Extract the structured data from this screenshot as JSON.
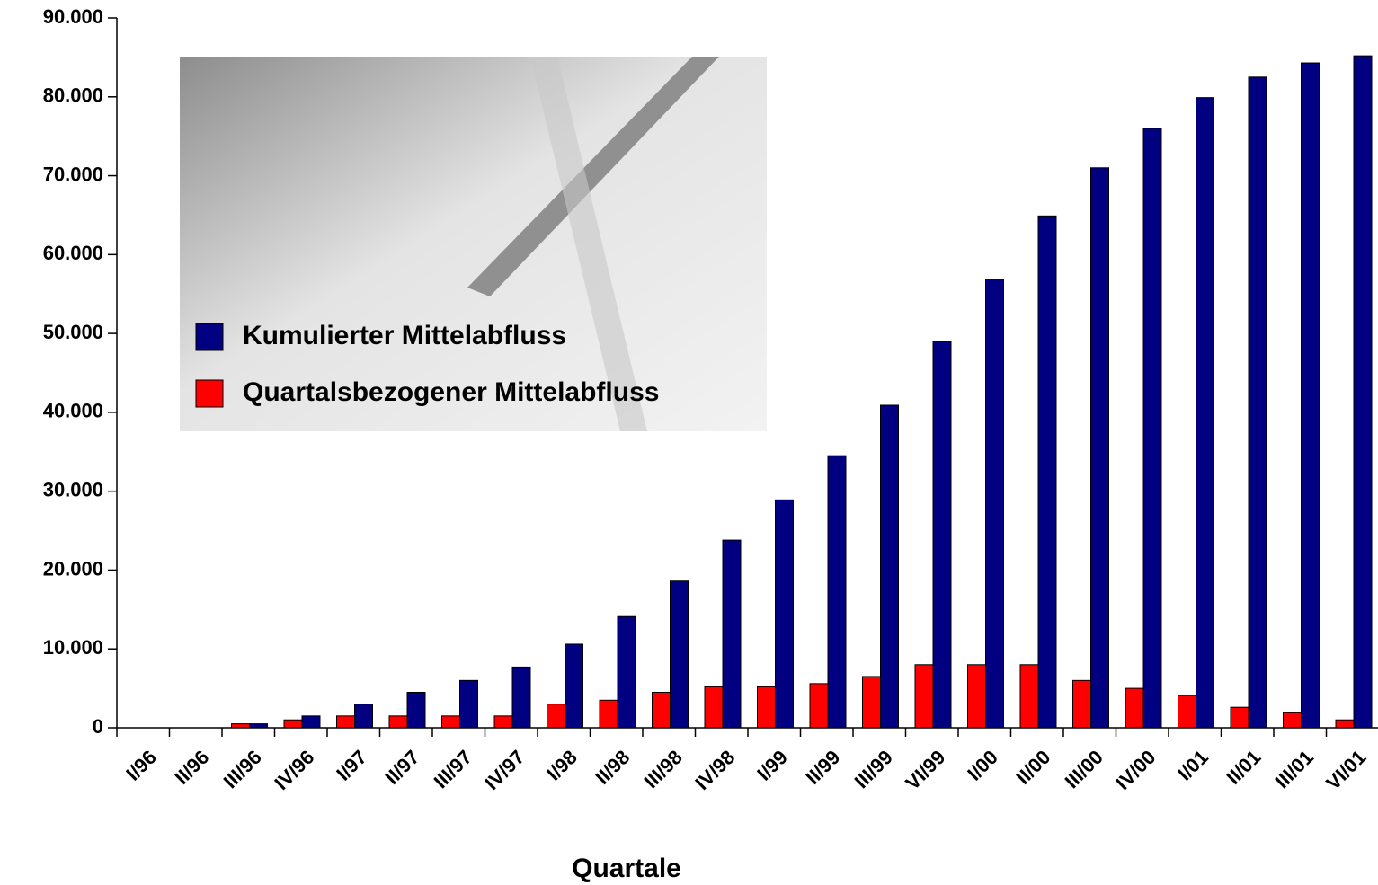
{
  "chart_data": {
    "type": "bar",
    "x_label": "Quartale",
    "categories": [
      "I/96",
      "II/96",
      "III/96",
      "IV/96",
      "I/97",
      "II/97",
      "III/97",
      "IV/97",
      "I/98",
      "II/98",
      "III/98",
      "IV/98",
      "I/99",
      "II/99",
      "III/99",
      "VI/99",
      "I/00",
      "II/00",
      "III/00",
      "IV/00",
      "I/01",
      "II/01",
      "III/01",
      "VI/01"
    ],
    "series": [
      {
        "name": "Quartalsbezogener Mittelabfluss",
        "color": "#ff0000",
        "values": [
          0,
          0,
          500,
          1000,
          1500,
          1500,
          1500,
          1500,
          3000,
          3500,
          4500,
          5200,
          5200,
          5600,
          6500,
          8000,
          8000,
          8000,
          6000,
          5000,
          4100,
          2600,
          1900,
          1000
        ]
      },
      {
        "name": "Kumulierter Mittelabfluss",
        "color": "#000080",
        "values": [
          0,
          0,
          500,
          1500,
          3000,
          4500,
          6000,
          7700,
          10600,
          14100,
          18600,
          23800,
          28900,
          34500,
          40900,
          49000,
          56900,
          64900,
          71000,
          76000,
          79900,
          82500,
          84300,
          85200
        ]
      }
    ],
    "legend_order": [
      1,
      0
    ],
    "ylim": [
      0,
      90000
    ],
    "yticks": [
      0,
      {
        "value": 10000,
        "label": "10.000"
      },
      {
        "value": 20000,
        "label": "20.000"
      },
      {
        "value": 30000,
        "label": "30.000"
      },
      {
        "value": 40000,
        "label": "40.000"
      },
      {
        "value": 50000,
        "label": "50.000"
      },
      {
        "value": 60000,
        "label": "60.000"
      },
      {
        "value": 70000,
        "label": "70.000"
      },
      {
        "value": 80000,
        "label": "80.000"
      },
      {
        "value": 90000,
        "label": "90.000"
      }
    ],
    "grid": false
  }
}
